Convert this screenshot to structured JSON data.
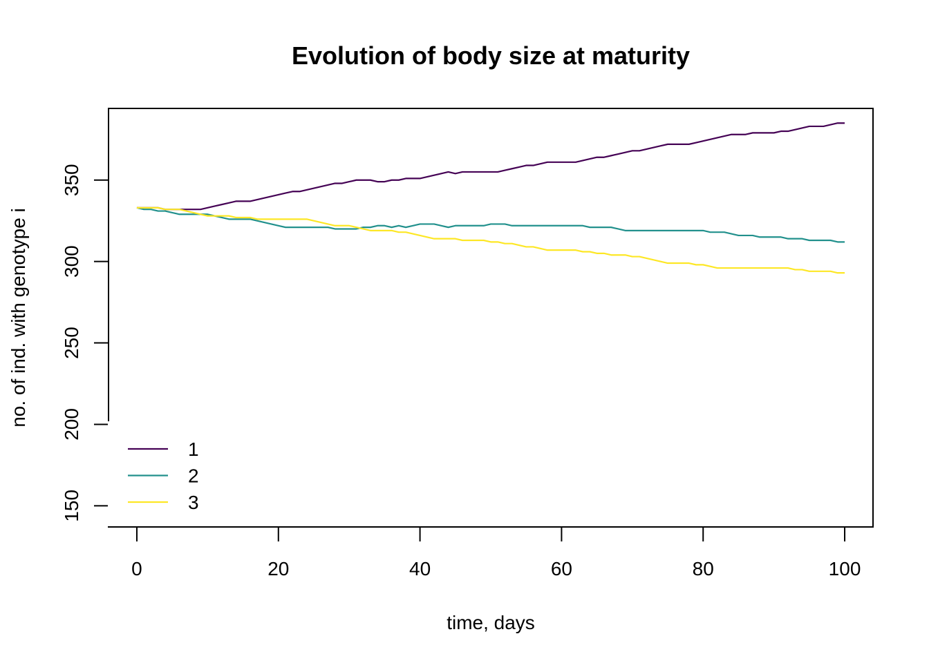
{
  "chart_data": {
    "type": "line",
    "title": "Evolution of body size at maturity",
    "xlabel": "time, days",
    "ylabel": "no. of ind. with genotype i",
    "xlim": [
      -4,
      104
    ],
    "ylim": [
      137,
      394
    ],
    "x_ticks": [
      0,
      20,
      40,
      60,
      80,
      100
    ],
    "y_ticks": [
      150,
      200,
      250,
      300,
      350
    ],
    "grid": false,
    "legend_position": "bottom-left",
    "x": [
      0,
      1,
      2,
      3,
      4,
      5,
      6,
      7,
      8,
      9,
      10,
      11,
      12,
      13,
      14,
      15,
      16,
      17,
      18,
      19,
      20,
      21,
      22,
      23,
      24,
      25,
      26,
      27,
      28,
      29,
      30,
      31,
      32,
      33,
      34,
      35,
      36,
      37,
      38,
      39,
      40,
      41,
      42,
      43,
      44,
      45,
      46,
      47,
      48,
      49,
      50,
      51,
      52,
      53,
      54,
      55,
      56,
      57,
      58,
      59,
      60,
      61,
      62,
      63,
      64,
      65,
      66,
      67,
      68,
      69,
      70,
      71,
      72,
      73,
      74,
      75,
      76,
      77,
      78,
      79,
      80,
      81,
      82,
      83,
      84,
      85,
      86,
      87,
      88,
      89,
      90,
      91,
      92,
      93,
      94,
      95,
      96,
      97,
      98,
      99,
      100
    ],
    "series": [
      {
        "name": "1",
        "color": "#440154",
        "values": [
          333,
          333,
          333,
          333,
          332,
          332,
          332,
          332,
          332,
          332,
          333,
          334,
          335,
          336,
          337,
          337,
          337,
          338,
          339,
          340,
          341,
          342,
          343,
          343,
          344,
          345,
          346,
          347,
          348,
          348,
          349,
          350,
          350,
          350,
          349,
          349,
          350,
          350,
          351,
          351,
          351,
          352,
          353,
          354,
          355,
          354,
          355,
          355,
          355,
          355,
          355,
          355,
          356,
          357,
          358,
          359,
          359,
          360,
          361,
          361,
          361,
          361,
          361,
          362,
          363,
          364,
          364,
          365,
          366,
          367,
          368,
          368,
          369,
          370,
          371,
          372,
          372,
          372,
          372,
          373,
          374,
          375,
          376,
          377,
          378,
          378,
          378,
          379,
          379,
          379,
          379,
          380,
          380,
          381,
          382,
          383,
          383,
          383,
          384,
          385,
          385
        ]
      },
      {
        "name": "2",
        "color": "#21908c",
        "values": [
          333,
          332,
          332,
          331,
          331,
          330,
          329,
          329,
          329,
          329,
          329,
          328,
          327,
          326,
          326,
          326,
          326,
          325,
          324,
          323,
          322,
          321,
          321,
          321,
          321,
          321,
          321,
          321,
          320,
          320,
          320,
          320,
          321,
          321,
          322,
          322,
          321,
          322,
          321,
          322,
          323,
          323,
          323,
          322,
          321,
          322,
          322,
          322,
          322,
          322,
          323,
          323,
          323,
          322,
          322,
          322,
          322,
          322,
          322,
          322,
          322,
          322,
          322,
          322,
          321,
          321,
          321,
          321,
          320,
          319,
          319,
          319,
          319,
          319,
          319,
          319,
          319,
          319,
          319,
          319,
          319,
          318,
          318,
          318,
          317,
          316,
          316,
          316,
          315,
          315,
          315,
          315,
          314,
          314,
          314,
          313,
          313,
          313,
          313,
          312,
          312
        ]
      },
      {
        "name": "3",
        "color": "#fde725",
        "values": [
          333,
          333,
          333,
          333,
          332,
          332,
          332,
          331,
          330,
          329,
          328,
          328,
          328,
          328,
          327,
          327,
          327,
          326,
          326,
          326,
          326,
          326,
          326,
          326,
          326,
          325,
          324,
          323,
          322,
          322,
          322,
          321,
          320,
          319,
          319,
          319,
          319,
          318,
          318,
          317,
          316,
          315,
          314,
          314,
          314,
          314,
          313,
          313,
          313,
          313,
          312,
          312,
          311,
          311,
          310,
          309,
          309,
          308,
          307,
          307,
          307,
          307,
          307,
          306,
          306,
          305,
          305,
          304,
          304,
          304,
          303,
          303,
          302,
          301,
          300,
          299,
          299,
          299,
          299,
          298,
          298,
          297,
          296,
          296,
          296,
          296,
          296,
          296,
          296,
          296,
          296,
          296,
          296,
          295,
          295,
          294,
          294,
          294,
          294,
          293,
          293
        ]
      }
    ]
  }
}
